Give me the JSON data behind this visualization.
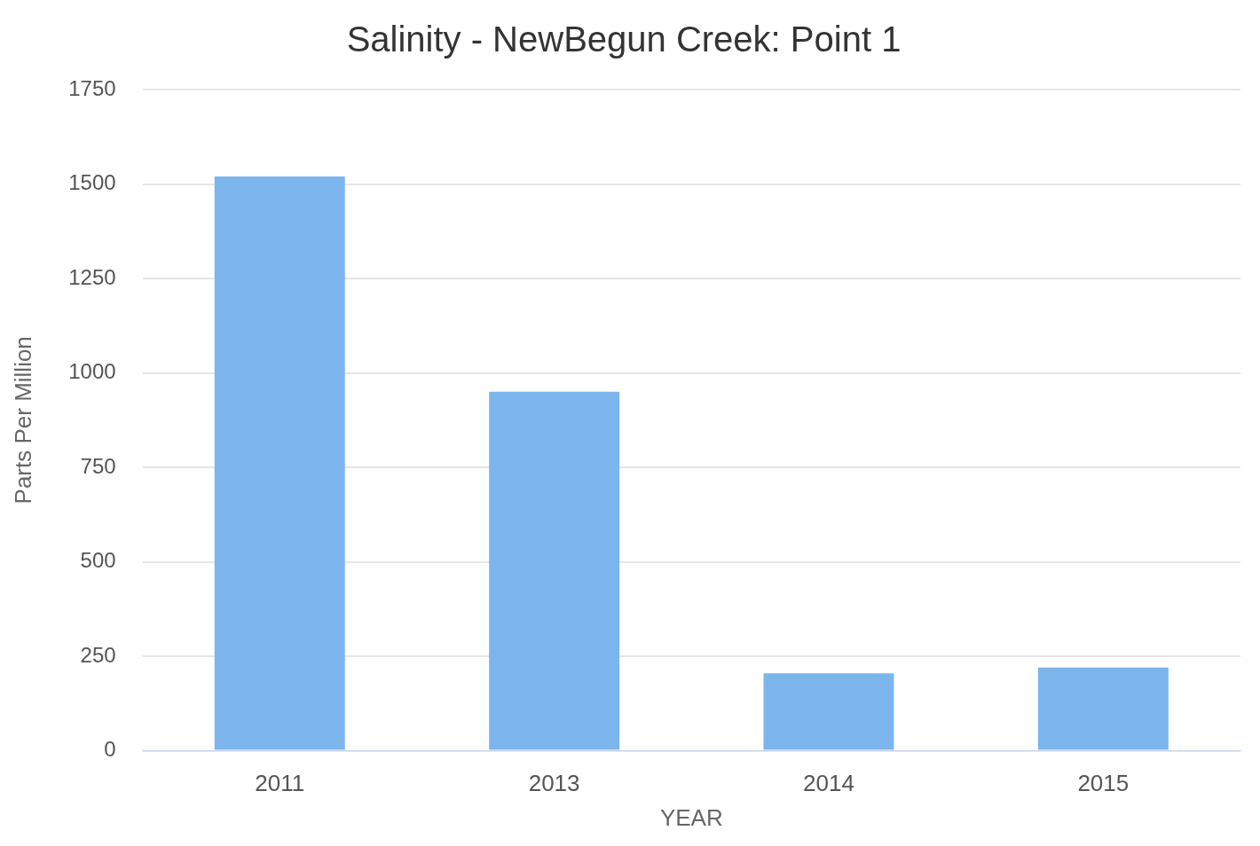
{
  "chart_data": {
    "type": "bar",
    "title": "Salinity - NewBegun Creek: Point 1",
    "xlabel": "YEAR",
    "ylabel": "Parts Per Million",
    "categories": [
      "2011",
      "2013",
      "2014",
      "2015"
    ],
    "values": [
      1520,
      950,
      205,
      220
    ],
    "color": "#7cb5ec",
    "ylim": [
      0,
      1750
    ],
    "yticks": [
      0,
      250,
      500,
      750,
      1000,
      1250,
      1500,
      1750
    ],
    "grid": "y",
    "legend": false
  }
}
